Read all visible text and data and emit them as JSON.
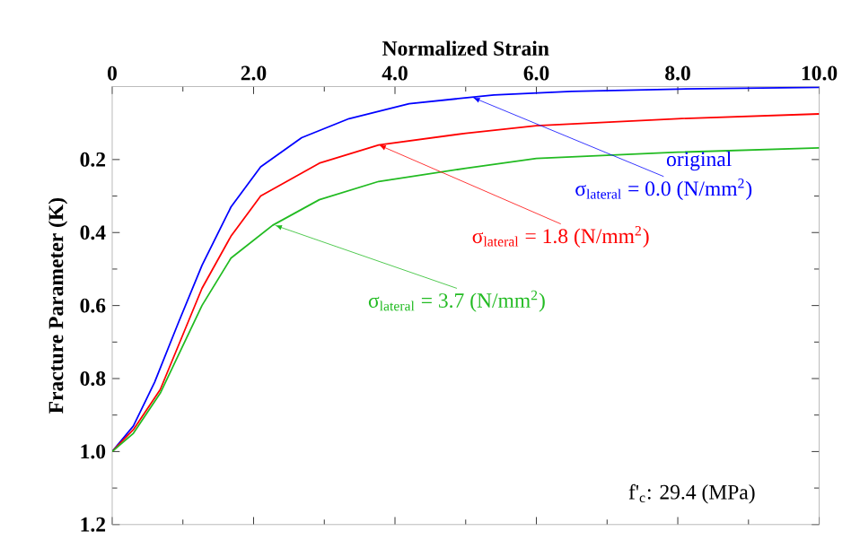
{
  "chart_data": {
    "type": "line",
    "xlabel": "Normalized Strain",
    "ylabel": "Fracture Parameter (K)",
    "xlim": [
      0,
      10
    ],
    "ylim": [
      1.2,
      0
    ],
    "xticks": [
      0,
      {
        "value": 2,
        "label": "2.0"
      },
      {
        "value": 4,
        "label": "4.0"
      },
      {
        "value": 6,
        "label": "6.0"
      },
      {
        "value": 8,
        "label": "8.0"
      },
      {
        "value": 10,
        "label": "10.0"
      }
    ],
    "yticks": [
      0.2,
      0.4,
      0.6,
      0.8,
      {
        "value": 1,
        "label": "1.0"
      },
      1.2
    ],
    "grid": false,
    "marker": "none",
    "line_style": "solid",
    "series": [
      {
        "color": "#0000ff",
        "x": [
          0,
          0.3,
          0.6,
          0.93,
          1.27,
          1.68,
          2.1,
          2.68,
          3.35,
          4.2,
          5.4,
          6.5,
          8,
          10
        ],
        "values": [
          1.0,
          0.93,
          0.81,
          0.65,
          0.49,
          0.33,
          0.22,
          0.14,
          0.088,
          0.047,
          0.023,
          0.013,
          0.007,
          0.002
        ]
      },
      {
        "color": "#ff0000",
        "x": [
          0,
          0.3,
          0.68,
          1.27,
          1.68,
          2.1,
          2.93,
          3.77,
          5.0,
          6,
          8,
          10
        ],
        "values": [
          1.0,
          0.94,
          0.83,
          0.553,
          0.41,
          0.3,
          0.21,
          0.16,
          0.128,
          0.107,
          0.088,
          0.075
        ]
      },
      {
        "color": "#22bb22",
        "x": [
          0,
          0.3,
          0.68,
          1.27,
          1.68,
          2.27,
          2.93,
          3.77,
          5.0,
          6,
          8,
          10
        ],
        "values": [
          1.0,
          0.95,
          0.84,
          0.6,
          0.47,
          0.38,
          0.31,
          0.26,
          0.224,
          0.197,
          0.18,
          0.168
        ]
      }
    ],
    "annotations": [
      {
        "text": "σ$_{lateral}$ = 0.0 (N/mm$^{2}$)",
        "x": 5.1,
        "y": 0.03
      },
      "original",
      {
        "text": "σ$_{lateral}$ = 1.8 (N/mm$^{2}$)",
        "x": 3.77,
        "y": 0.16
      },
      {
        "text": "σ$_{lateral}$ = 3.7 (N/mm$^{2}$)",
        "x": 2.3,
        "y": 0.38
      },
      "f'$_{c}$: 29.4 (MPa)"
    ]
  }
}
